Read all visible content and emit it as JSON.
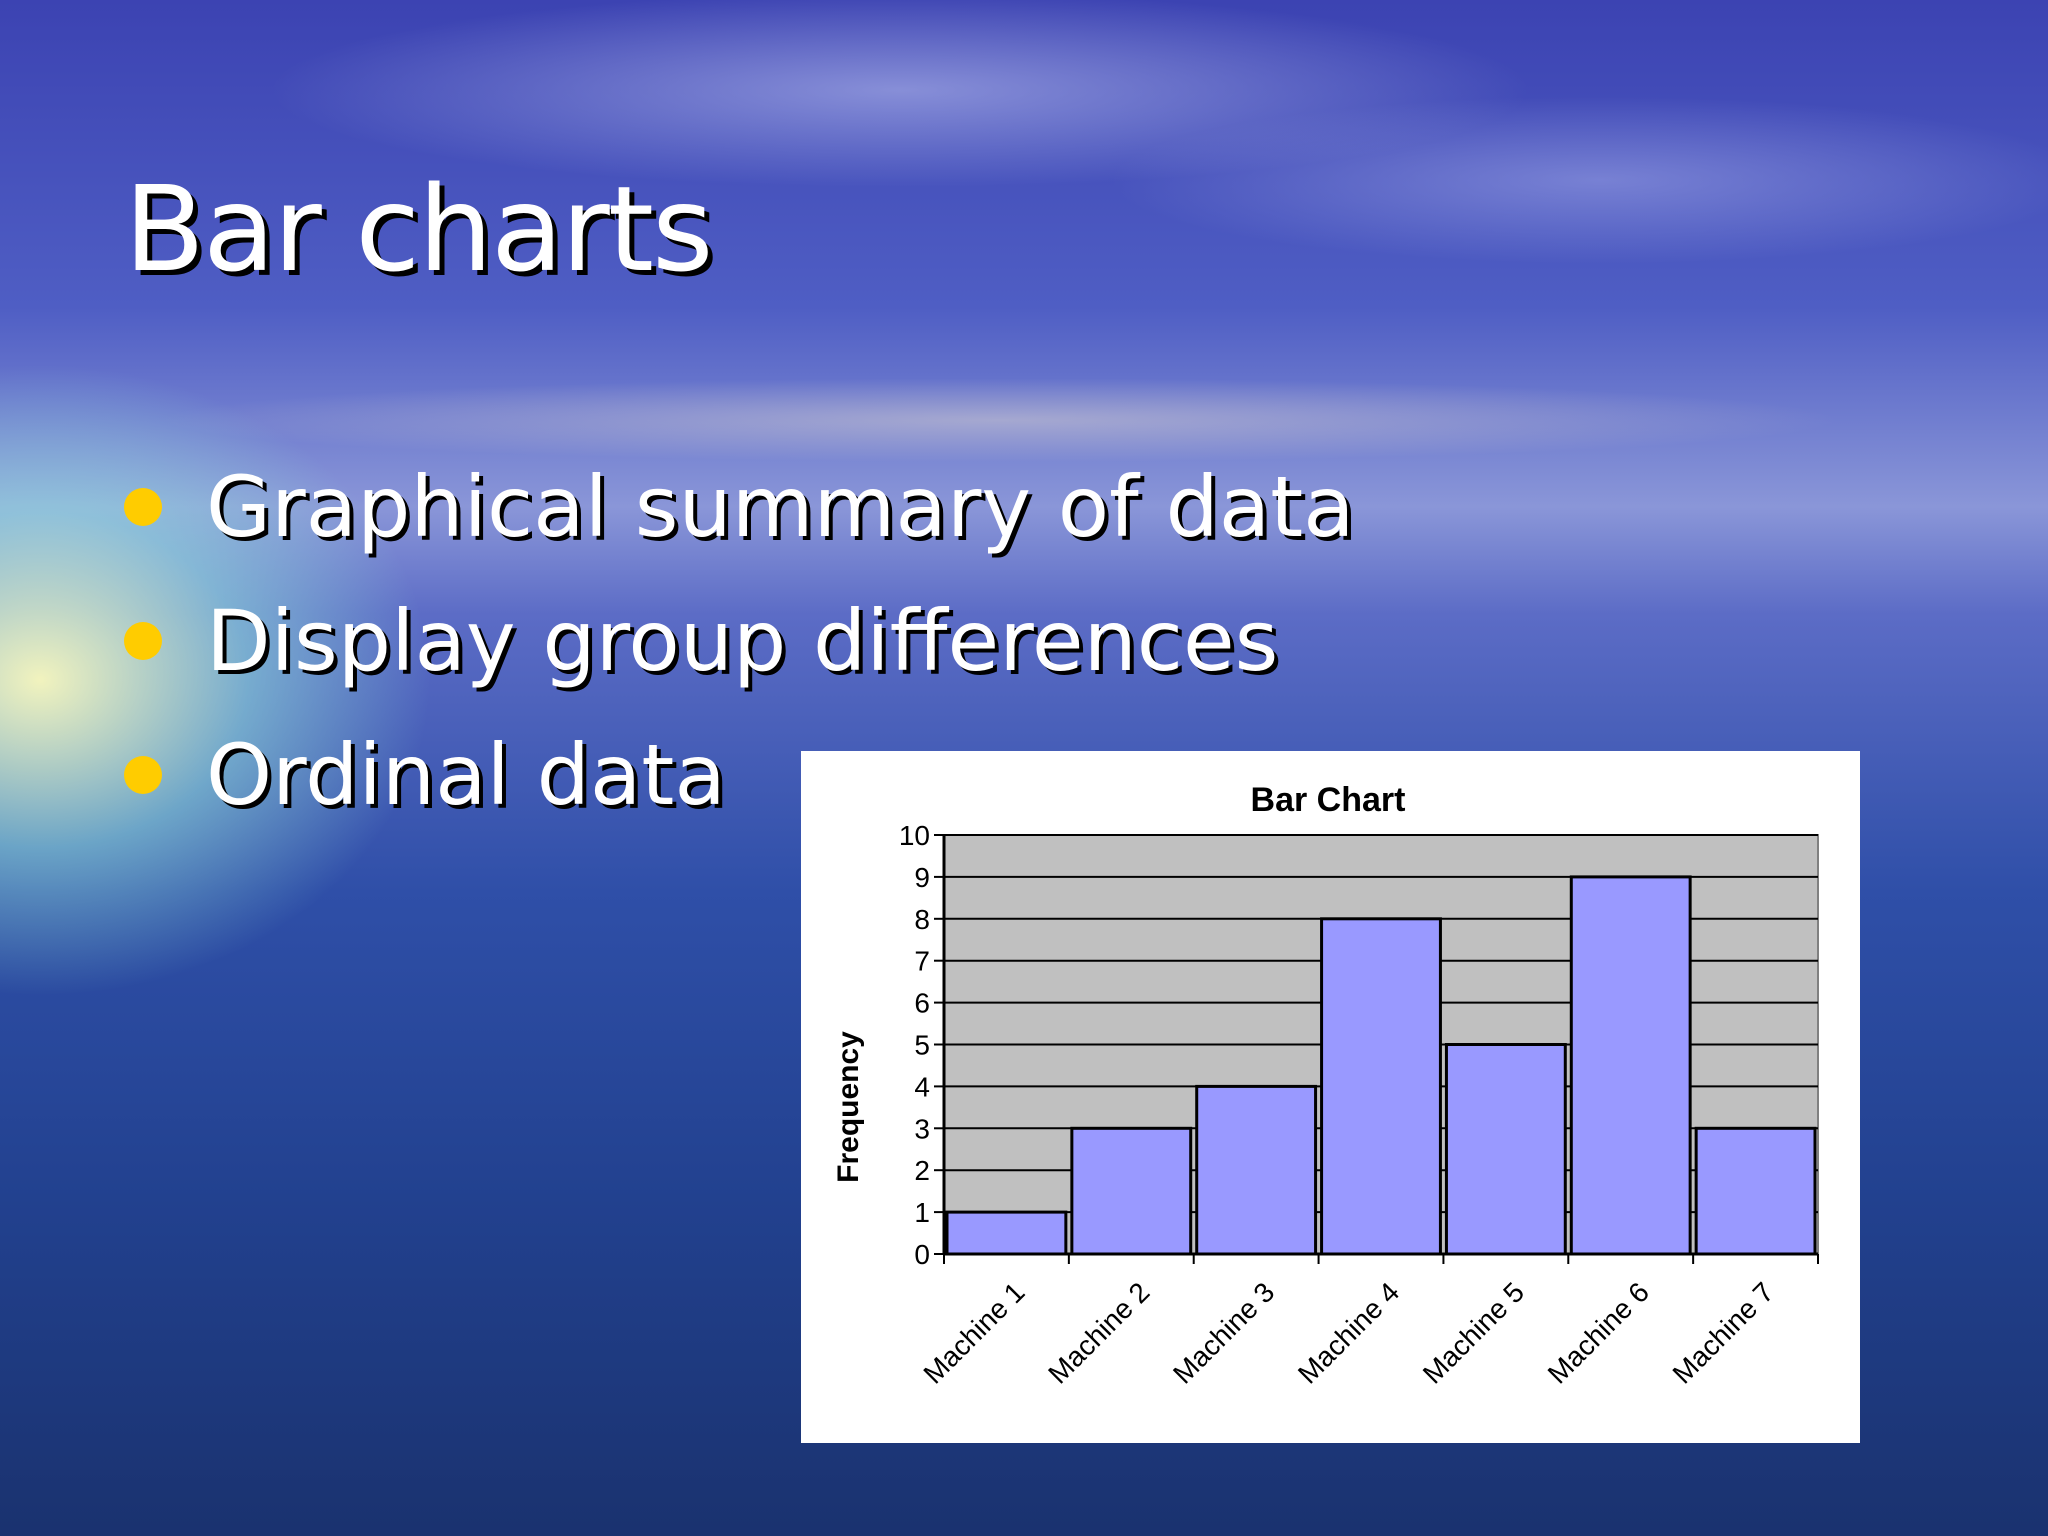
{
  "slide": {
    "title": "Bar charts",
    "bullets": [
      "Graphical summary of data",
      "Display group differences",
      "Ordinal data"
    ]
  },
  "colors": {
    "bullet": "#ffcc00",
    "bar_fill": "#9999ff",
    "plot_bg": "#c0c0c0"
  },
  "chart_data": {
    "type": "bar",
    "title": "Bar Chart",
    "xlabel": "",
    "ylabel": "Frequency",
    "categories": [
      "Machine 1",
      "Machine 2",
      "Machine 3",
      "Machine 4",
      "Machine 5",
      "Machine 6",
      "Machine 7"
    ],
    "values": [
      1,
      3,
      4,
      8,
      5,
      9,
      3
    ],
    "ylim": [
      0,
      10
    ],
    "yticks": [
      0,
      1,
      2,
      3,
      4,
      5,
      6,
      7,
      8,
      9,
      10
    ],
    "grid": true
  }
}
